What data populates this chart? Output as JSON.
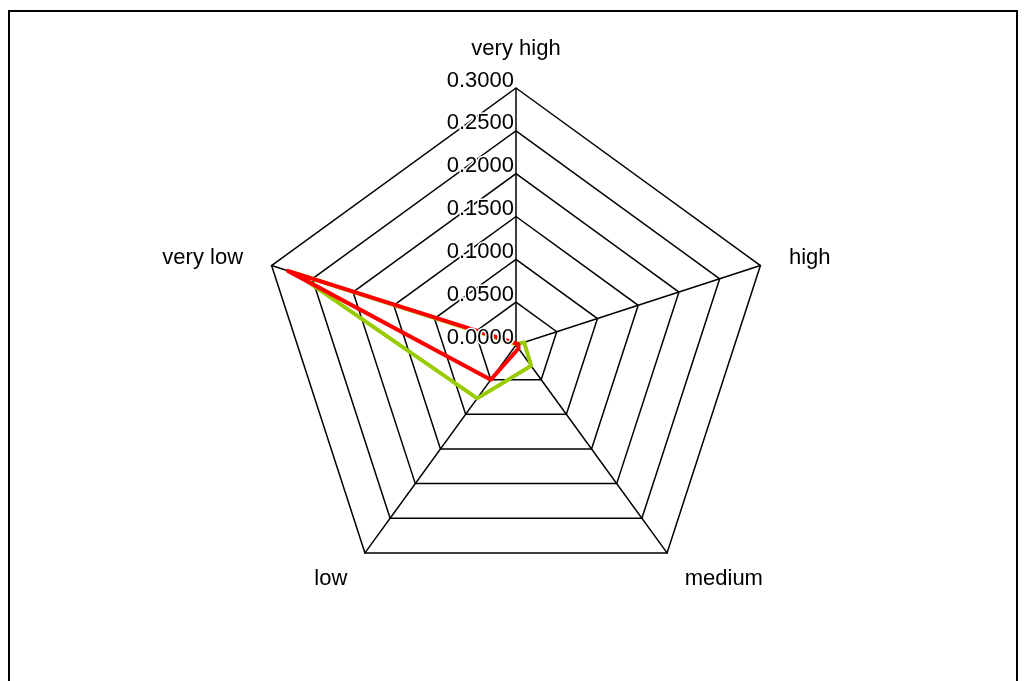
{
  "chart_data": {
    "type": "radar",
    "categories": [
      "very high",
      "high",
      "medium",
      "low",
      "very low"
    ],
    "series": [
      {
        "color": "#99cc00",
        "values": [
          0.001,
          0.01,
          0.03,
          0.077,
          0.27
        ]
      },
      {
        "color": "#ff0000",
        "values": [
          0.002,
          0.003,
          0.005,
          0.05,
          0.28
        ]
      }
    ],
    "ylim": [
      0,
      0.3
    ],
    "yticks": [
      {
        "value": 0,
        "label": "0.0000"
      },
      {
        "value": 0.05,
        "label": "0.0500"
      },
      {
        "value": 0.1,
        "label": "0.1000"
      },
      {
        "value": 0.15,
        "label": "0.1500"
      },
      {
        "value": 0.2,
        "label": "0.2000"
      },
      {
        "value": 0.25,
        "label": "0.2500"
      },
      {
        "value": 0.3,
        "label": "0.3000"
      }
    ]
  }
}
